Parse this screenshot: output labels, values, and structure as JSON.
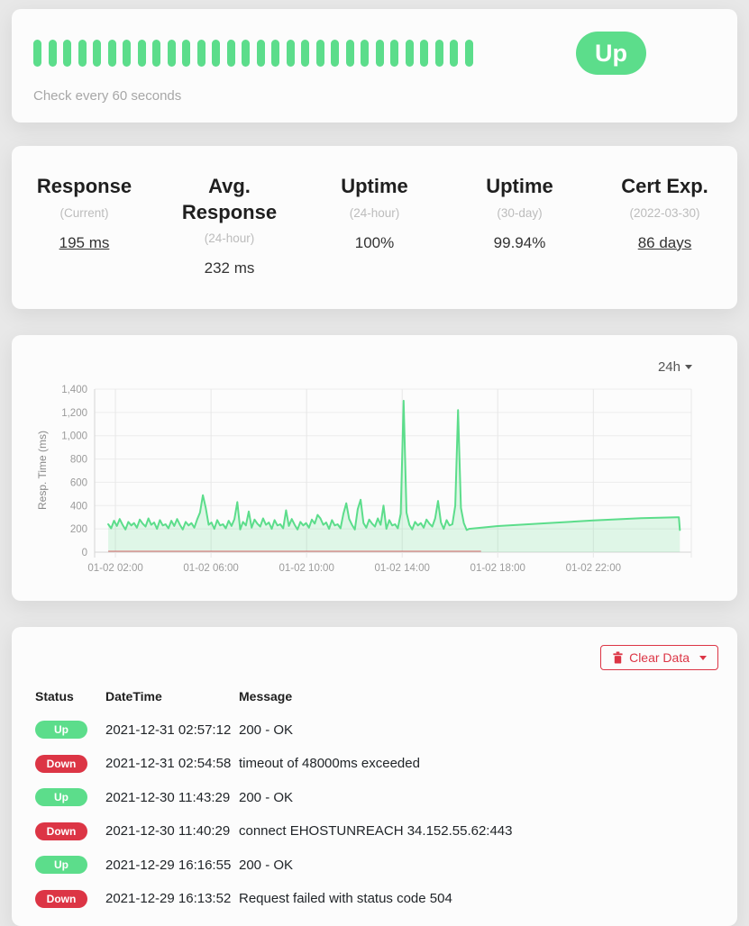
{
  "colors": {
    "green": "#5cdd8b",
    "red": "#dc3545"
  },
  "monitor": {
    "status_label": "Up",
    "check_text": "Check every 60 seconds",
    "heartbeat_count": 30
  },
  "stats": [
    {
      "title": "Response",
      "subtitle": "(Current)",
      "value": "195 ms",
      "underlined": true
    },
    {
      "title": "Avg. Response",
      "subtitle": "(24-hour)",
      "value": "232 ms",
      "underlined": false
    },
    {
      "title": "Uptime",
      "subtitle": "(24-hour)",
      "value": "100%",
      "underlined": false
    },
    {
      "title": "Uptime",
      "subtitle": "(30-day)",
      "value": "99.94%",
      "underlined": false
    },
    {
      "title": "Cert Exp.",
      "subtitle": "(2022-03-30)",
      "value": "86 days",
      "underlined": true
    }
  ],
  "chart": {
    "period_label": "24h"
  },
  "chart_data": {
    "type": "area",
    "title": "",
    "ylabel": "Resp. Time (ms)",
    "legend": "off",
    "grid": "on",
    "x_axis": {
      "min_h": 1.13,
      "max_h": 26.1,
      "ticks": [
        {
          "h": 2,
          "label": "01-02 02:00"
        },
        {
          "h": 6,
          "label": "01-02 06:00"
        },
        {
          "h": 10,
          "label": "01-02 10:00"
        },
        {
          "h": 14,
          "label": "01-02 14:00"
        },
        {
          "h": 18,
          "label": "01-02 18:00"
        },
        {
          "h": 22,
          "label": "01-02 22:00"
        }
      ]
    },
    "y_axis": {
      "min": 0,
      "max": 1400,
      "ticks": [
        {
          "v": 0,
          "label": "0"
        },
        {
          "v": 200,
          "label": "200"
        },
        {
          "v": 400,
          "label": "400"
        },
        {
          "v": 600,
          "label": "600"
        },
        {
          "v": 800,
          "label": "800"
        },
        {
          "v": 1000,
          "label": "1,000"
        },
        {
          "v": 1200,
          "label": "1,200"
        },
        {
          "v": 1400,
          "label": "1,400"
        }
      ]
    },
    "series": [
      {
        "name": "Response Time (ms)",
        "h_start": 1.7,
        "h_step": 0.12,
        "values": [
          240,
          205,
          270,
          225,
          285,
          235,
          195,
          260,
          230,
          250,
          210,
          280,
          245,
          220,
          290,
          235,
          255,
          200,
          275,
          230,
          240,
          205,
          270,
          225,
          285,
          235,
          195,
          260,
          230,
          250,
          210,
          280,
          340,
          490,
          380,
          235,
          255,
          200,
          275,
          230,
          240,
          205,
          270,
          225,
          285,
          430,
          195,
          260,
          230,
          350,
          210,
          280,
          245,
          220,
          290,
          235,
          255,
          200,
          275,
          230,
          240,
          205,
          360,
          225,
          285,
          235,
          195,
          260,
          230,
          250,
          210,
          280,
          245,
          320,
          290,
          235,
          255,
          200,
          275,
          230,
          240,
          205,
          330,
          420,
          285,
          235,
          195,
          370,
          450,
          250,
          210,
          280,
          245,
          220,
          290,
          235,
          400,
          200,
          275,
          230,
          240,
          205,
          330,
          1300,
          340,
          235,
          195,
          260,
          230,
          250,
          210,
          280,
          245,
          220,
          290,
          440,
          255,
          200,
          275,
          230,
          240,
          400,
          1220,
          380,
          250
        ],
        "tail": [
          [
            16.7,
            190
          ],
          [
            16.8,
            200
          ],
          [
            18,
            224
          ],
          [
            20,
            248
          ],
          [
            22,
            272
          ],
          [
            24,
            292
          ],
          [
            25.5,
            300
          ],
          [
            25.58,
            299
          ],
          [
            25.62,
            190
          ]
        ]
      }
    ],
    "down_line": {
      "h_start": 1.7,
      "h_end": 17.3,
      "value": 0
    },
    "line_color": "#5cdd8b",
    "fill_color": "rgba(92,221,139,0.18)",
    "down_color": "rgba(220,53,69,0.5)"
  },
  "events": {
    "clear_label": "Clear Data",
    "columns": [
      "Status",
      "DateTime",
      "Message"
    ],
    "rows": [
      {
        "status": "Up",
        "datetime": "2021-12-31 02:57:12",
        "message": "200 - OK"
      },
      {
        "status": "Down",
        "datetime": "2021-12-31 02:54:58",
        "message": "timeout of 48000ms exceeded"
      },
      {
        "status": "Up",
        "datetime": "2021-12-30 11:43:29",
        "message": "200 - OK"
      },
      {
        "status": "Down",
        "datetime": "2021-12-30 11:40:29",
        "message": "connect EHOSTUNREACH 34.152.55.62:443"
      },
      {
        "status": "Up",
        "datetime": "2021-12-29 16:16:55",
        "message": "200 - OK"
      },
      {
        "status": "Down",
        "datetime": "2021-12-29 16:13:52",
        "message": "Request failed with status code 504"
      }
    ]
  }
}
